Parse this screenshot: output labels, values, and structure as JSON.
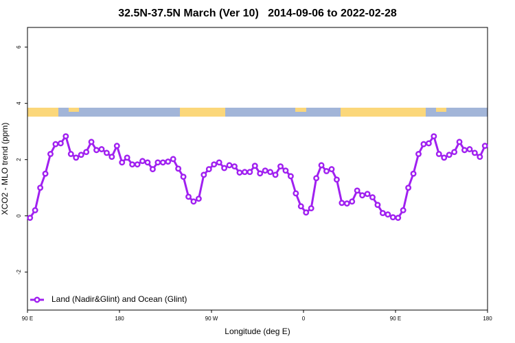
{
  "chart_data": {
    "type": "line",
    "title": "32.5N-37.5N March (Ver 10)   2014-09-06 to 2022-02-28",
    "xlabel": "Longitude (deg E)",
    "ylabel": "XCO2 - MLO trend (ppm)",
    "x": [
      92.5,
      97.5,
      102.5,
      107.5,
      112.5,
      117.5,
      122.5,
      127.5,
      132.5,
      137.5,
      142.5,
      147.5,
      152.5,
      157.5,
      162.5,
      167.5,
      172.5,
      177.5,
      182.5,
      187.5,
      192.5,
      197.5,
      202.5,
      207.5,
      212.5,
      217.5,
      222.5,
      227.5,
      232.5,
      237.5,
      242.5,
      247.5,
      252.5,
      257.5,
      262.5,
      267.5,
      272.5,
      277.5,
      282.5,
      287.5,
      292.5,
      297.5,
      302.5,
      307.5,
      312.5,
      317.5,
      322.5,
      327.5,
      332.5,
      337.5,
      342.5,
      347.5,
      352.5,
      357.5,
      362.5,
      367.5,
      372.5,
      377.5,
      382.5,
      387.5,
      392.5,
      397.5,
      402.5,
      407.5,
      412.5,
      417.5,
      422.5,
      427.5,
      432.5,
      437.5,
      442.5,
      447.5,
      452.5,
      457.5,
      462.5,
      467.5,
      472.5,
      477.5,
      482.5,
      487.5,
      492.5,
      497.5,
      502.5,
      507.5,
      512.5,
      517.5,
      522.5,
      527.5,
      532.5,
      537.5
    ],
    "series": [
      {
        "name": "Land (Nadir&Glint) and Ocean (Glint)",
        "color": "#a020f0",
        "values": [
          -0.07,
          0.2,
          1.0,
          1.5,
          2.2,
          2.55,
          2.58,
          2.83,
          2.2,
          2.07,
          2.17,
          2.27,
          2.63,
          2.34,
          2.37,
          2.24,
          2.1,
          2.49,
          1.9,
          2.07,
          1.83,
          1.83,
          1.95,
          1.9,
          1.66,
          1.9,
          1.9,
          1.93,
          2.02,
          1.68,
          1.39,
          0.68,
          0.51,
          0.61,
          1.46,
          1.66,
          1.83,
          1.9,
          1.7,
          1.8,
          1.76,
          1.54,
          1.56,
          1.56,
          1.78,
          1.51,
          1.61,
          1.56,
          1.46,
          1.76,
          1.61,
          1.41,
          0.8,
          0.34,
          0.12,
          0.27,
          1.34,
          1.8,
          1.59,
          1.66,
          1.29,
          0.46,
          0.44,
          0.51,
          0.9,
          0.73,
          0.78,
          0.66,
          0.39,
          0.1,
          0.05,
          -0.05,
          -0.07,
          0.2,
          1.0,
          1.5,
          2.2,
          2.55,
          2.58,
          2.83,
          2.2,
          2.07,
          2.17,
          2.27,
          2.63,
          2.34,
          2.37,
          2.24,
          2.1,
          2.49
        ]
      }
    ],
    "xlim": [
      90,
      540
    ],
    "xticks": [
      {
        "value": 90,
        "label": "90 E"
      },
      180,
      {
        "value": 270,
        "label": "90 W"
      },
      {
        "value": 360,
        "label": "0"
      },
      {
        "value": 450,
        "label": "90 E"
      },
      {
        "value": 540,
        "label": "180"
      }
    ],
    "ylim": [
      -3.35,
      6.7
    ],
    "yticks": [
      -2,
      0,
      2,
      4,
      6
    ],
    "legend": "bottom-left"
  }
}
